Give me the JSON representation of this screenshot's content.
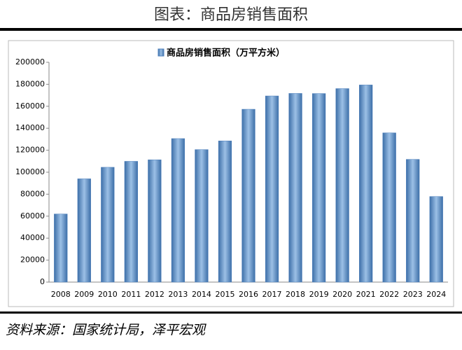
{
  "chart_data": {
    "type": "bar",
    "title": "图表：商品房销售面积",
    "source": "资料来源：国家统计局，泽平宏观",
    "categories": [
      "2008",
      "2009",
      "2010",
      "2011",
      "2012",
      "2013",
      "2014",
      "2015",
      "2016",
      "2017",
      "2018",
      "2019",
      "2020",
      "2021",
      "2022",
      "2023",
      "2024"
    ],
    "series": [
      {
        "name": "商品房销售面积（万平方米）",
        "color": "#4f81bd",
        "values": [
          62000,
          94000,
          104500,
          109900,
          111300,
          130600,
          120600,
          128500,
          157300,
          169400,
          171700,
          171600,
          176100,
          179400,
          135800,
          111700,
          77900
        ]
      }
    ],
    "ylim": [
      0,
      200000
    ],
    "yticks": [
      0,
      20000,
      40000,
      60000,
      80000,
      100000,
      120000,
      140000,
      160000,
      180000,
      200000
    ],
    "grid": false,
    "legend": "top"
  }
}
